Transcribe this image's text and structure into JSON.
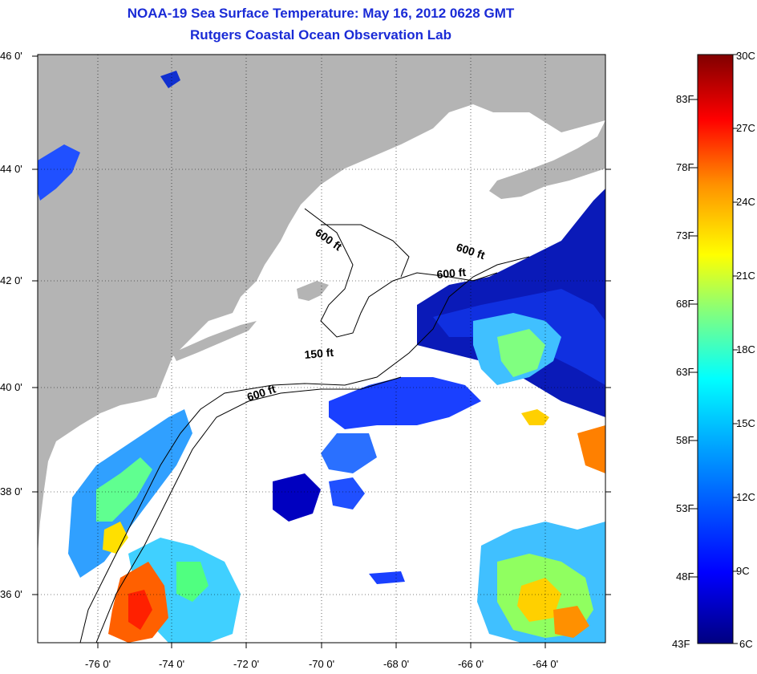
{
  "title_line1": "NOAA-19 Sea Surface Temperature:  May 16, 2012 0628 GMT",
  "title_line2": "Rutgers Coastal Ocean Observation Lab",
  "map": {
    "lat_labels": [
      "46 0'",
      "44 0'",
      "42 0'",
      "40 0'",
      "38 0'",
      "36 0'"
    ],
    "lon_labels": [
      "-76 0'",
      "-74 0'",
      "-72 0'",
      "-70 0'",
      "-68 0'",
      "-66 0'",
      "-64 0'"
    ],
    "contour_labels": [
      "600 ft",
      "600 ft",
      "600 ft",
      "150 ft",
      "600 ft"
    ],
    "colors": {
      "land": "#b4b4b4",
      "ocean_no_data": "#ffffff"
    }
  },
  "colorbar": {
    "fahrenheit_labels": [
      "83F",
      "78F",
      "73F",
      "68F",
      "63F",
      "58F",
      "53F",
      "48F",
      "43F"
    ],
    "celsius_labels": [
      "30C",
      "27C",
      "24C",
      "21C",
      "18C",
      "15C",
      "12C",
      "9C",
      "6C"
    ],
    "colors": [
      "#000080",
      "#0000ff",
      "#00a0ff",
      "#00ffff",
      "#80ff80",
      "#ffff00",
      "#ff9000",
      "#ff0000",
      "#800000"
    ]
  }
}
